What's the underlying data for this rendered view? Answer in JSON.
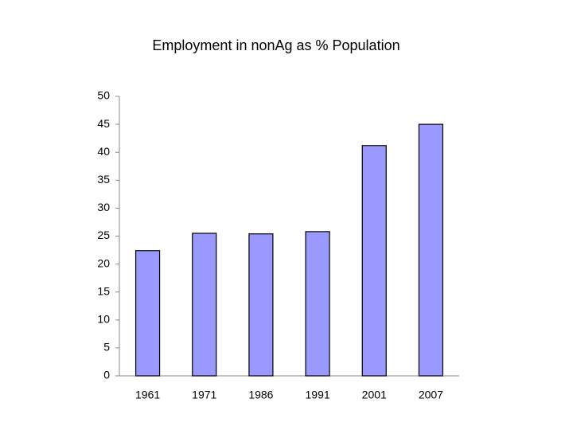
{
  "chart_data": {
    "type": "bar",
    "title": "Employment in nonAg as % Population",
    "categories": [
      "1961",
      "1971",
      "1986",
      "1991",
      "2001",
      "2007"
    ],
    "values": [
      22.4,
      25.5,
      25.4,
      25.8,
      41.2,
      45.0
    ],
    "color": "#9999ff",
    "ylim": [
      0,
      50
    ],
    "yticks": [
      0,
      5,
      10,
      15,
      20,
      25,
      30,
      35,
      40,
      45,
      50
    ],
    "grid": false
  }
}
